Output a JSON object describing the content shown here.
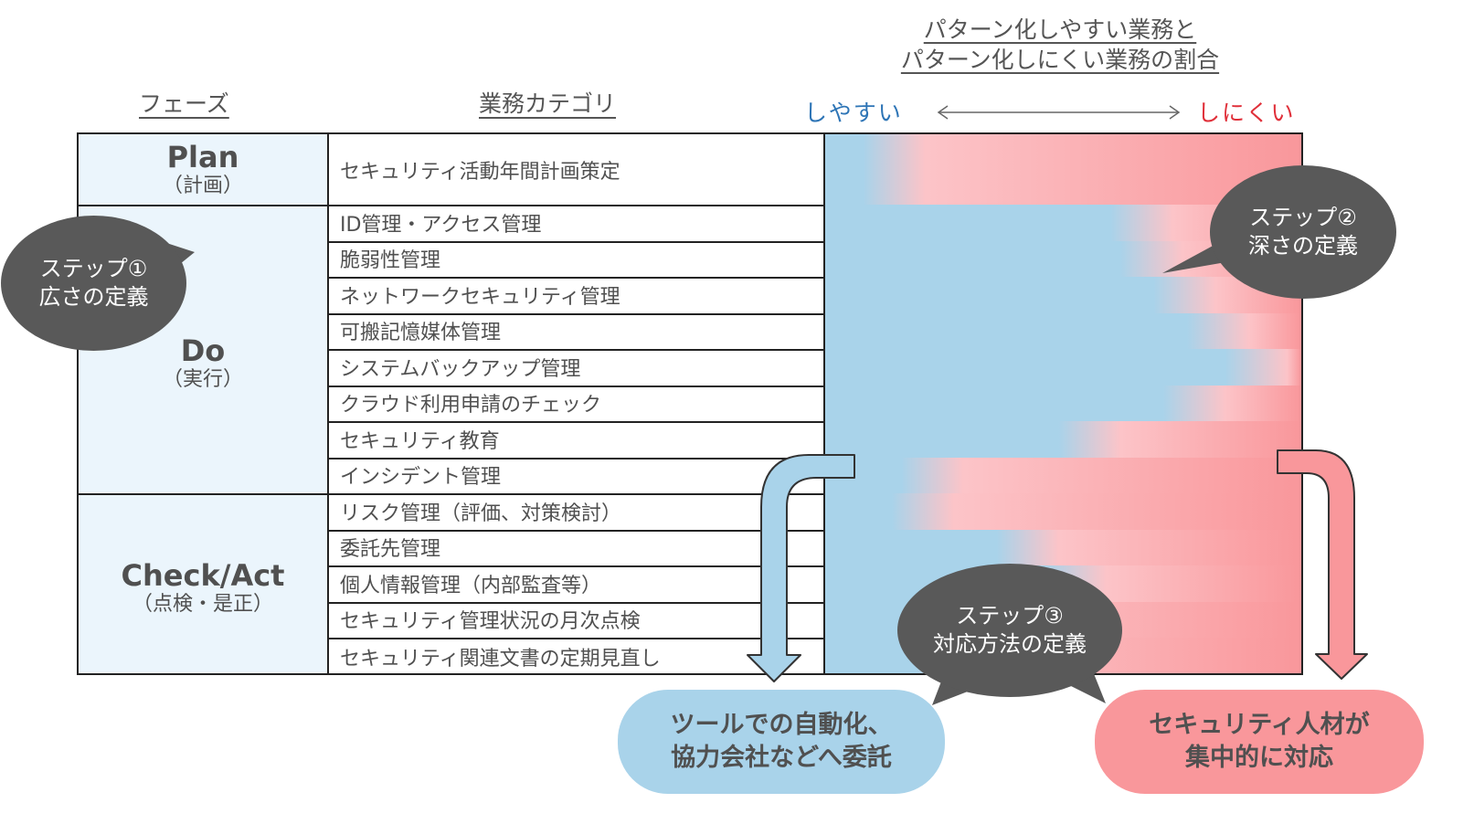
{
  "headers": {
    "phase": "フェーズ",
    "category": "業務カテゴリ",
    "ratio_line1": "パターン化しやすい業務と",
    "ratio_line2": "パターン化しにくい業務の割合",
    "easy": "しやすい",
    "hard": "しにくい"
  },
  "phases": [
    {
      "name": "Plan",
      "sub": "（計画）"
    },
    {
      "name": "Do",
      "sub": "（実行）"
    },
    {
      "name": "Check/Act",
      "sub": "（点検・是正）"
    }
  ],
  "categories": [
    {
      "label": "セキュリティ活動年間計画策定",
      "easy_ratio": 0.14
    },
    {
      "label": "ID管理・アクセス管理",
      "easy_ratio": 0.66
    },
    {
      "label": "脆弱性管理",
      "easy_ratio": 0.68
    },
    {
      "label": "ネットワークセキュリティ管理",
      "easy_ratio": 0.75
    },
    {
      "label": "可搬記憶媒体管理",
      "easy_ratio": 0.82
    },
    {
      "label": "システムバックアップ管理",
      "easy_ratio": 0.9
    },
    {
      "label": "クラウド利用申請のチェック",
      "easy_ratio": 0.77
    },
    {
      "label": "セキュリティ教育",
      "easy_ratio": 0.55
    },
    {
      "label": "インシデント管理",
      "easy_ratio": 0.22
    },
    {
      "label": "リスク管理（評価、対策検討）",
      "easy_ratio": 0.2
    },
    {
      "label": "委託先管理",
      "easy_ratio": 0.42
    },
    {
      "label": "個人情報管理（内部監査等）",
      "easy_ratio": 0.52
    },
    {
      "label": "セキュリティ管理状況の月次点検",
      "easy_ratio": 0.3
    },
    {
      "label": "セキュリティ関連文書の定期見直し",
      "easy_ratio": 0.25
    }
  ],
  "steps": {
    "step1_line1": "ステップ①",
    "step1_line2": "広さの定義",
    "step2_line1": "ステップ②",
    "step2_line2": "深さの定義",
    "step3_line1": "ステップ③",
    "step3_line2": "対応方法の定義"
  },
  "outcomes": {
    "left_line1": "ツールでの自動化、",
    "left_line2": "協力会社などへ委託",
    "right_line1": "セキュリティ人材が",
    "right_line2": "集中的に対応"
  },
  "colors": {
    "easy_blue": "#a9d3ea",
    "hard_pink": "#fcc4c8",
    "hard_red": "#f9979b",
    "phase_bg": "#ebf5fc",
    "bubble_dark": "#595959",
    "easy_text": "#2e75b6",
    "hard_text": "#e0303a"
  }
}
